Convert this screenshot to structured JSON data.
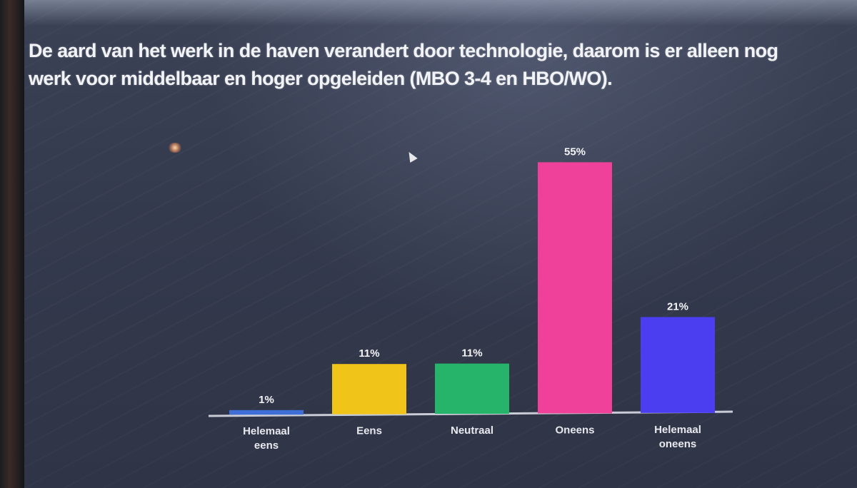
{
  "question": "De aard van het werk in de haven verandert door technologie, daarom is er alleen nog werk voor middelbaar en hoger opgeleiden (MBO 3-4 en HBO/WO).",
  "chart_data": {
    "type": "bar",
    "categories": [
      "Helemaal eens",
      "Eens",
      "Neutraal",
      "Oneens",
      "Helemaal oneens"
    ],
    "values": [
      1,
      11,
      11,
      55,
      21
    ],
    "value_labels": [
      "1%",
      "11%",
      "11%",
      "55%",
      "21%"
    ],
    "colors": [
      "#3f6fd6",
      "#f0c419",
      "#26b36a",
      "#f0419a",
      "#4b3df0"
    ],
    "ylim": [
      0,
      55
    ],
    "grid": false,
    "title": "",
    "xlabel": "",
    "ylabel": ""
  }
}
